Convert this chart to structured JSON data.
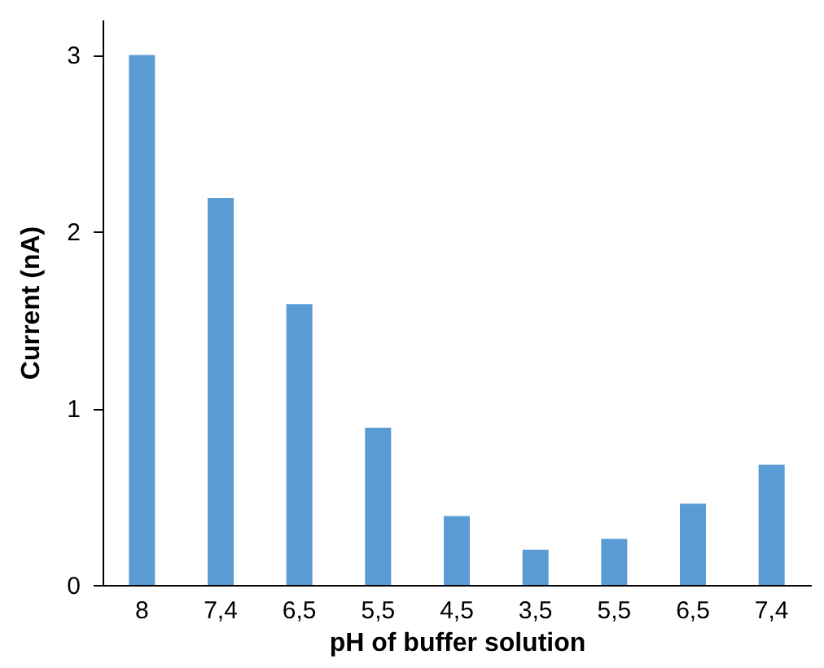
{
  "chart_data": {
    "type": "bar",
    "xlabel": "pH of buffer solution",
    "ylabel": "Current (nA)",
    "categories": [
      "8",
      "7,4",
      "6,5",
      "5,5",
      "4,5",
      "3,5",
      "5,5",
      "6,5",
      "7,4"
    ],
    "values": [
      3.0,
      2.19,
      1.59,
      0.89,
      0.39,
      0.2,
      0.26,
      0.46,
      0.68
    ],
    "color": "#5b9bd5",
    "ylim": [
      0,
      3.2
    ],
    "yticks": [
      0,
      1,
      2,
      3
    ],
    "grid": false
  }
}
